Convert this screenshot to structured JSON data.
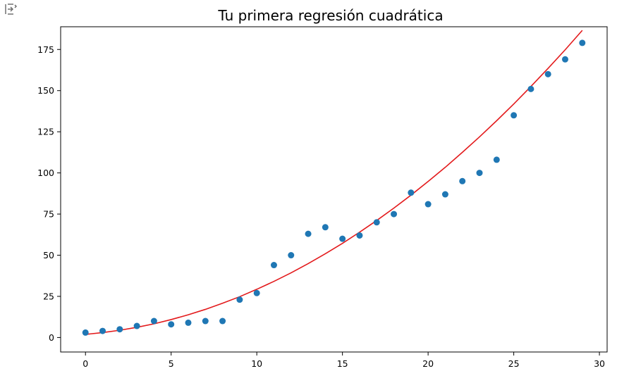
{
  "chart_data": {
    "type": "scatter",
    "title": "Tu primera regresión cuadrática",
    "xlabel": "",
    "ylabel": "",
    "xlim": [
      -1.45,
      30.45
    ],
    "ylim": [
      -8.8,
      188.8
    ],
    "x_ticks": [
      0,
      5,
      10,
      15,
      20,
      25,
      30
    ],
    "y_ticks": [
      0,
      25,
      50,
      75,
      100,
      125,
      150,
      175
    ],
    "grid": false,
    "legend": "none",
    "series": [
      {
        "kind": "scatter",
        "color": "#1f77b4",
        "x": [
          0,
          1,
          2,
          3,
          4,
          5,
          6,
          7,
          8,
          9,
          10,
          11,
          12,
          13,
          14,
          15,
          16,
          17,
          18,
          19,
          20,
          21,
          22,
          23,
          24,
          25,
          26,
          27,
          28,
          29
        ],
        "y": [
          3,
          4,
          5,
          7,
          10,
          8,
          9,
          10,
          10,
          23,
          27,
          44,
          50,
          63,
          67,
          60,
          62,
          70,
          75,
          88,
          81,
          87,
          95,
          100,
          108,
          135,
          151,
          160,
          169,
          179
        ]
      },
      {
        "kind": "line",
        "color": "#e31a1c",
        "x": [
          0,
          1,
          2,
          3,
          4,
          5,
          6,
          7,
          8,
          9,
          10,
          11,
          12,
          13,
          14,
          15,
          16,
          17,
          18,
          19,
          20,
          21,
          22,
          23,
          24,
          25,
          26,
          27,
          28,
          29
        ],
        "y": [
          1.9,
          3.0,
          4.4,
          6.2,
          8.3,
          10.9,
          13.8,
          17.1,
          20.8,
          24.8,
          29.3,
          34.1,
          39.3,
          44.9,
          50.9,
          57.2,
          64.0,
          71.1,
          78.6,
          86.5,
          94.8,
          103.4,
          112.5,
          121.9,
          131.7,
          141.9,
          152.5,
          163.5,
          174.8,
          186.6
        ]
      }
    ]
  }
}
